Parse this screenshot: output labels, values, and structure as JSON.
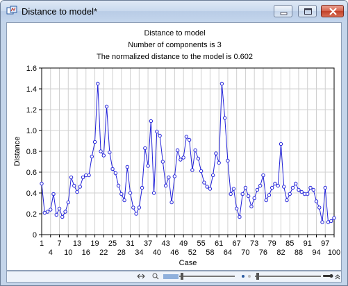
{
  "window": {
    "title": "Distance to model*"
  },
  "header": {
    "line1": "Distance to model",
    "line2": "Number of components is 3",
    "line3": "The normalized distance to the model is 0.602"
  },
  "colors": {
    "series": "#2020d8",
    "grid": "#d0d0d0",
    "titlebar": "#c9d9ee",
    "close": "#c9462e"
  },
  "chart_data": {
    "type": "line",
    "xlabel": "Case",
    "ylabel": "Distance",
    "xlim": [
      1,
      100
    ],
    "ylim": [
      0,
      1.6
    ],
    "xticks": [
      1,
      4,
      7,
      10,
      13,
      16,
      19,
      22,
      25,
      28,
      31,
      34,
      37,
      40,
      43,
      46,
      49,
      52,
      55,
      58,
      61,
      64,
      67,
      70,
      73,
      76,
      79,
      82,
      85,
      88,
      91,
      94,
      97,
      100
    ],
    "yticks": [
      "0",
      "0.2",
      "0.4",
      "0.6",
      "0.8",
      "1.0",
      "1.2",
      "1.4",
      "1.6"
    ],
    "grid": true,
    "series": [
      {
        "values": [
          0.49,
          0.21,
          0.22,
          0.24,
          0.39,
          0.19,
          0.25,
          0.17,
          0.22,
          0.31,
          0.55,
          0.47,
          0.41,
          0.46,
          0.55,
          0.57,
          0.57,
          0.75,
          0.89,
          1.45,
          0.8,
          0.76,
          1.23,
          0.79,
          0.63,
          0.59,
          0.47,
          0.39,
          0.33,
          0.65,
          0.4,
          0.26,
          0.2,
          0.26,
          0.45,
          0.83,
          0.66,
          1.09,
          0.4,
          0.99,
          0.95,
          0.7,
          0.47,
          0.55,
          0.31,
          0.56,
          0.81,
          0.72,
          0.74,
          0.94,
          0.91,
          0.62,
          0.81,
          0.73,
          0.61,
          0.5,
          0.46,
          0.44,
          0.57,
          0.78,
          0.69,
          1.45,
          1.12,
          0.71,
          0.39,
          0.44,
          0.25,
          0.17,
          0.39,
          0.45,
          0.37,
          0.27,
          0.35,
          0.43,
          0.47,
          0.57,
          0.33,
          0.38,
          0.45,
          0.49,
          0.47,
          0.87,
          0.46,
          0.33,
          0.39,
          0.45,
          0.49,
          0.43,
          0.41,
          0.39,
          0.39,
          0.45,
          0.43,
          0.32,
          0.26,
          0.12,
          0.45,
          0.12,
          0.13,
          0.16
        ]
      }
    ]
  },
  "toolbar": {
    "icons": [
      "pan-icon",
      "zoom-icon",
      "scale-slider",
      "marker-toggle",
      "point-size-slider",
      "key-icon",
      "collapse-icon"
    ]
  }
}
